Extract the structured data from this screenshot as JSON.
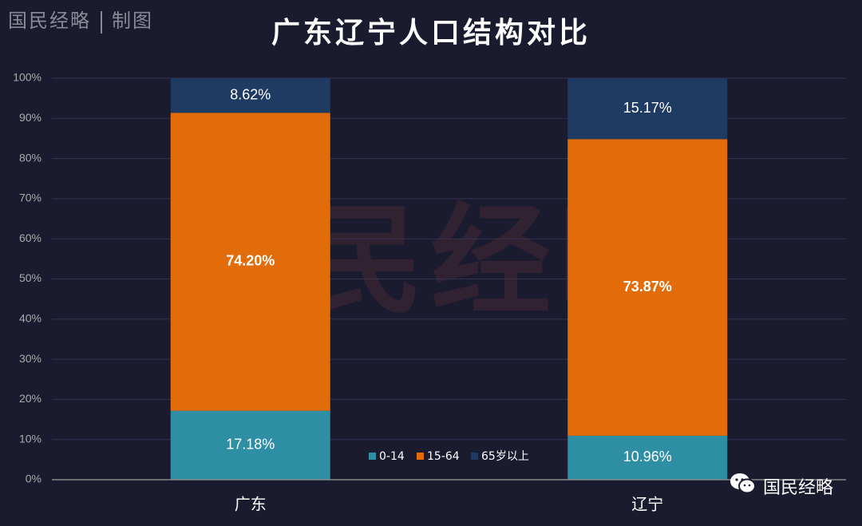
{
  "brand": {
    "name": "国民经略",
    "suffix": "制图"
  },
  "watermark": "国民经略",
  "footer_brand": "国民经略",
  "chart_data": {
    "type": "bar",
    "stacked": true,
    "title": "广东辽宁人口结构对比",
    "categories": [
      "广东",
      "辽宁"
    ],
    "series": [
      {
        "name": "0-14",
        "values": [
          17.18,
          10.96
        ],
        "labels": [
          "17.18%",
          "10.96%"
        ],
        "color": "#2e8ea3"
      },
      {
        "name": "15-64",
        "values": [
          74.2,
          73.87
        ],
        "labels": [
          "74.20%",
          "73.87%"
        ],
        "color": "#e36c0a"
      },
      {
        "name": "65岁以上",
        "values": [
          8.62,
          15.17
        ],
        "labels": [
          "8.62%",
          "15.17%"
        ],
        "color": "#1f3b63"
      }
    ],
    "ylim": [
      0,
      100
    ],
    "yticks": [
      "0%",
      "10%",
      "20%",
      "30%",
      "40%",
      "50%",
      "60%",
      "70%",
      "80%",
      "90%",
      "100%"
    ],
    "grid": true,
    "legend_position": "bottom-center",
    "colors": {
      "background": "#1b1b30",
      "grid": "#333350",
      "axis": "#aaaaaa",
      "text": "#ffffff"
    }
  }
}
